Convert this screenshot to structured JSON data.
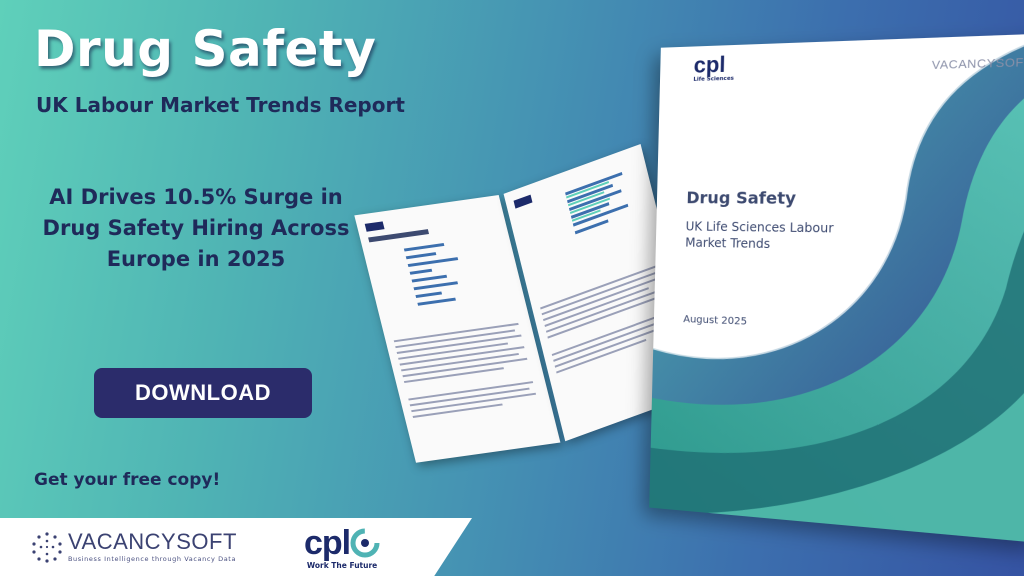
{
  "banner": {
    "title": "Drug Safety",
    "subtitle": "UK Labour Market Trends Report",
    "headline": "AI Drives 10.5% Surge in Drug Safety Hiring Across Europe in 2025",
    "download_label": "DOWNLOAD",
    "free_copy_text": "Get your free copy!"
  },
  "report_cover": {
    "title": "Drug Safety",
    "subtitle": "UK Life Sciences Labour Market Trends",
    "date": "August 2025",
    "cpl_wordmark": "cpl",
    "cpl_tagline": "Life Sciences",
    "vacancysoft_wordmark": "VACANCYSOFT"
  },
  "logos": {
    "vacancysoft_wordmark": "VACANCYSOFT",
    "vacancysoft_tagline": "Business Intelligence through Vacancy Data",
    "cpl_wordmark": "cpl",
    "cpl_tagline": "Work The Future"
  },
  "colors": {
    "navy": "#1f2a5a",
    "button": "#2b2c6b",
    "teal": "#5fd0ba",
    "blue": "#3553a3"
  }
}
